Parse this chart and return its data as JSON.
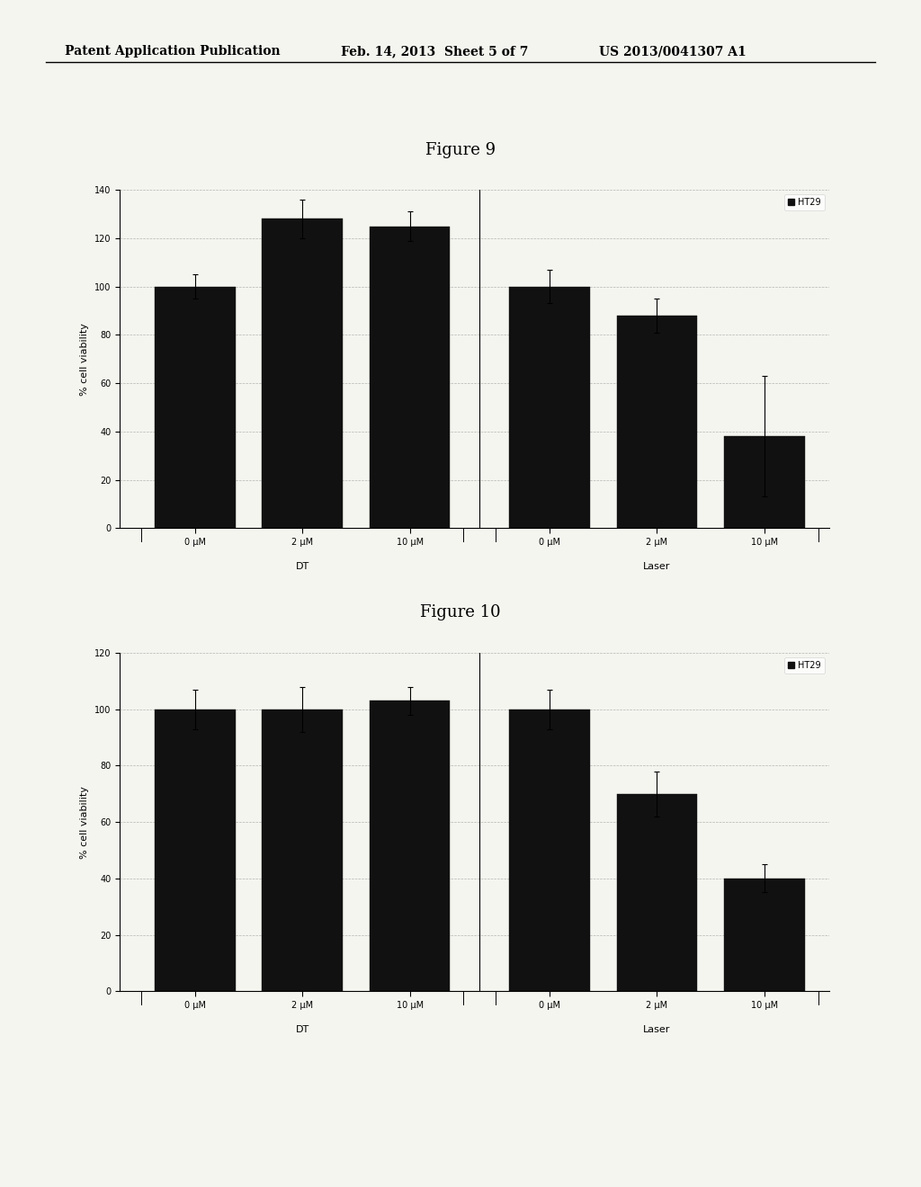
{
  "header_left": "Patent Application Publication",
  "header_mid": "Feb. 14, 2013  Sheet 5 of 7",
  "header_right": "US 2013/0041307 A1",
  "fig9_title": "Figure 9",
  "fig10_title": "Figure 10",
  "fig9": {
    "categories": [
      "0 μM",
      "2 μM",
      "10 μM",
      "0 μM",
      "2 μM",
      "10 μM"
    ],
    "group_labels": [
      "DT",
      "Laser"
    ],
    "values": [
      100,
      128,
      125,
      100,
      88,
      38
    ],
    "errors": [
      5,
      8,
      6,
      7,
      7,
      25
    ],
    "bar_color": "#111111",
    "legend_label": "HT29",
    "ylabel": "% cell viability",
    "ylim": [
      0,
      140
    ],
    "yticks": [
      0,
      20,
      40,
      60,
      80,
      100,
      120,
      140
    ],
    "grid": true
  },
  "fig10": {
    "categories": [
      "0 μM",
      "2 μM",
      "10 μM",
      "0 μM",
      "2 μM",
      "10 μM"
    ],
    "group_labels": [
      "DT",
      "Laser"
    ],
    "values": [
      100,
      100,
      103,
      100,
      70,
      40
    ],
    "errors": [
      7,
      8,
      5,
      7,
      8,
      5
    ],
    "bar_color": "#111111",
    "legend_label": "HT29",
    "ylabel": "% cell viability",
    "ylim": [
      0,
      120
    ],
    "yticks": [
      0,
      20,
      40,
      60,
      80,
      100,
      120
    ],
    "grid": true
  },
  "background_color": "#f5f5f0",
  "header_fontsize": 10,
  "title_fontsize": 13,
  "axis_fontsize": 7,
  "legend_fontsize": 7,
  "ylabel_fontsize": 8
}
